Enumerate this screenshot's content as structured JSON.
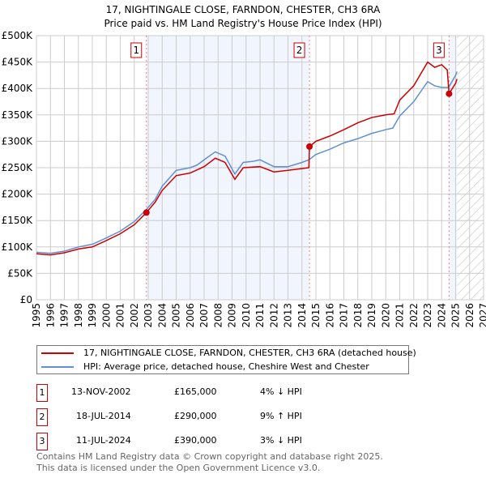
{
  "chart_data": {
    "type": "line",
    "title": "17, NIGHTINGALE CLOSE, FARNDON, CHESTER, CH3 6RA",
    "subtitle": "Price paid vs. HM Land Registry's House Price Index (HPI)",
    "xlim": [
      1995,
      2027
    ],
    "ylim": [
      0,
      500000
    ],
    "x_ticks": [
      "1995",
      "1996",
      "1997",
      "1998",
      "1999",
      "2000",
      "2001",
      "2002",
      "2003",
      "2004",
      "2005",
      "2006",
      "2007",
      "2008",
      "2009",
      "2010",
      "2011",
      "2012",
      "2013",
      "2014",
      "2015",
      "2016",
      "2017",
      "2018",
      "2019",
      "2020",
      "2021",
      "2022",
      "2023",
      "2024",
      "2025",
      "2026",
      "2027"
    ],
    "y_ticks": [
      {
        "v": 0,
        "label": "£0"
      },
      {
        "v": 50000,
        "label": "£50K"
      },
      {
        "v": 100000,
        "label": "£100K"
      },
      {
        "v": 150000,
        "label": "£150K"
      },
      {
        "v": 200000,
        "label": "£200K"
      },
      {
        "v": 250000,
        "label": "£250K"
      },
      {
        "v": 300000,
        "label": "£300K"
      },
      {
        "v": 350000,
        "label": "£350K"
      },
      {
        "v": 400000,
        "label": "£400K"
      },
      {
        "v": 450000,
        "label": "£450K"
      },
      {
        "v": 500000,
        "label": "£500K"
      }
    ],
    "grid": true,
    "forecast_hatch_from": 2025.1,
    "series": [
      {
        "name": "17, NIGHTINGALE CLOSE, FARNDON, CHESTER, CH3 6RA (detached house)",
        "color": "#cc0000",
        "x": [
          1995,
          1996,
          1997,
          1998,
          1999,
          2000,
          2001,
          2002,
          2002.87,
          2003.5,
          2004,
          2005,
          2006,
          2007,
          2007.8,
          2008.5,
          2009.2,
          2009.8,
          2011,
          2012,
          2013,
          2014.5,
          2014.54,
          2015,
          2016,
          2017,
          2018,
          2019,
          2020,
          2020.6,
          2021,
          2022,
          2023,
          2023.5,
          2024,
          2024.4,
          2024.53,
          2025,
          2025.1
        ],
        "y": [
          87000,
          85000,
          89000,
          96000,
          100000,
          112000,
          125000,
          142000,
          165000,
          185000,
          207000,
          235000,
          240000,
          252000,
          268000,
          260000,
          228000,
          250000,
          252000,
          242000,
          245000,
          250000,
          290000,
          300000,
          310000,
          322000,
          335000,
          345000,
          350000,
          352000,
          378000,
          405000,
          450000,
          440000,
          445000,
          435000,
          390000,
          410000,
          418000
        ]
      },
      {
        "name": "HPI: Average price, detached house, Cheshire West and Chester",
        "color": "#6090d0",
        "x": [
          1995,
          1996,
          1997,
          1998,
          1999,
          2000,
          2001,
          2002,
          2002.9,
          2003.5,
          2004,
          2005,
          2006,
          2006.5,
          2007,
          2007.8,
          2008.5,
          2009.2,
          2009.8,
          2010.5,
          2011,
          2012,
          2013,
          2014,
          2014.5,
          2015,
          2016,
          2017,
          2018,
          2019,
          2020,
          2020.5,
          2021,
          2022,
          2023,
          2023.5,
          2024,
          2024.5,
          2025,
          2025.1
        ],
        "y": [
          90000,
          88000,
          92000,
          100000,
          105000,
          117000,
          130000,
          148000,
          172000,
          190000,
          215000,
          245000,
          250000,
          255000,
          265000,
          280000,
          272000,
          238000,
          260000,
          262000,
          265000,
          252000,
          252000,
          260000,
          265000,
          275000,
          285000,
          297000,
          305000,
          315000,
          322000,
          325000,
          348000,
          375000,
          413000,
          405000,
          402000,
          402000,
          425000,
          432000
        ]
      }
    ],
    "sales": [
      {
        "label": "1",
        "x": 2002.87,
        "price": 165000,
        "date": "13-NOV-2002",
        "price_text": "£165,000",
        "hpi_text": "4% ↓ HPI"
      },
      {
        "label": "2",
        "x": 2014.54,
        "price": 290000,
        "date": "18-JUL-2014",
        "price_text": "£290,000",
        "hpi_text": "9% ↑ HPI"
      },
      {
        "label": "3",
        "x": 2024.53,
        "price": 390000,
        "date": "11-JUL-2024",
        "price_text": "£390,000",
        "hpi_text": "3% ↓ HPI"
      }
    ]
  },
  "legend": {
    "red": "17, NIGHTINGALE CLOSE, FARNDON, CHESTER, CH3 6RA (detached house)",
    "blue": "HPI: Average price, detached house, Cheshire West and Chester"
  },
  "footer": {
    "line1": "Contains HM Land Registry data © Crown copyright and database right 2025.",
    "line2": "This data is licensed under the Open Government Licence v3.0."
  }
}
